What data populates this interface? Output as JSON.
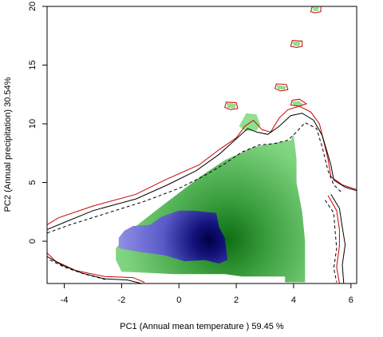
{
  "chart_data": {
    "type": "heatmap",
    "title": "",
    "xlabel": "PC1 (Annual mean temperature ) 59.45 %",
    "ylabel": "PC2 (Annual precipitation) 30.54%",
    "xlim": [
      -4.6,
      6.2
    ],
    "ylim": [
      -3.6,
      20
    ],
    "xticks": [
      -4,
      -2,
      0,
      2,
      4,
      6
    ],
    "yticks": [
      0,
      5,
      10,
      15,
      20
    ],
    "grid": false,
    "legend": "none",
    "colors": {
      "green": "#8fe08f",
      "green_dark": "#0f7a14",
      "blue": "#8c8ce6",
      "navy": "#000050",
      "red_contour": "#cc0000",
      "black_contour": "#000000"
    },
    "layers": [
      {
        "name": "green",
        "polygon": [
          [
            -2.2,
            -1.6
          ],
          [
            -2.2,
            -0.6
          ],
          [
            -1.6,
            1.1
          ],
          [
            -0.6,
            3.0
          ],
          [
            0.8,
            5.6
          ],
          [
            1.6,
            6.9
          ],
          [
            2.6,
            8.0
          ],
          [
            3.2,
            8.3
          ],
          [
            3.9,
            8.6
          ],
          [
            4.0,
            9.1
          ],
          [
            4.1,
            7.0
          ],
          [
            4.1,
            5.0
          ],
          [
            4.3,
            2.5
          ],
          [
            4.4,
            0.0
          ],
          [
            4.4,
            -3.5
          ],
          [
            3.7,
            -3.5
          ],
          [
            3.7,
            -3.0
          ],
          [
            2.2,
            -3.0
          ],
          [
            1.6,
            -2.8
          ],
          [
            -0.2,
            -2.8
          ],
          [
            -1.0,
            -2.7
          ],
          [
            -2.0,
            -2.6
          ]
        ]
      },
      {
        "name": "blue",
        "polygon": [
          [
            -2.1,
            -0.6
          ],
          [
            -1.4,
            -0.9
          ],
          [
            -0.5,
            -1.2
          ],
          [
            0.2,
            -1.7
          ],
          [
            0.9,
            -1.6
          ],
          [
            1.4,
            -1.9
          ],
          [
            1.7,
            -1.6
          ],
          [
            1.6,
            0.3
          ],
          [
            1.4,
            1.2
          ],
          [
            1.3,
            2.4
          ],
          [
            0.5,
            2.6
          ],
          [
            0.0,
            2.6
          ],
          [
            -0.6,
            2.1
          ],
          [
            -1.0,
            1.4
          ],
          [
            -1.6,
            1.3
          ],
          [
            -1.9,
            0.9
          ],
          [
            -2.1,
            0.3
          ]
        ]
      },
      {
        "name": "green-spots",
        "polygons": [
          [
            [
              1.65,
              11.8
            ],
            [
              2.0,
              11.7
            ],
            [
              1.95,
              11.3
            ],
            [
              1.7,
              11.35
            ]
          ],
          [
            [
              2.1,
              9.8
            ],
            [
              2.35,
              10.9
            ],
            [
              2.7,
              10.8
            ],
            [
              2.85,
              9.9
            ],
            [
              2.7,
              9.4
            ],
            [
              2.3,
              9.4
            ]
          ],
          [
            [
              3.4,
              13.3
            ],
            [
              3.75,
              13.2
            ],
            [
              3.7,
              12.9
            ],
            [
              3.45,
              12.95
            ]
          ],
          [
            [
              3.95,
              17.0
            ],
            [
              4.25,
              17.0
            ],
            [
              4.2,
              16.6
            ],
            [
              4.0,
              16.65
            ]
          ],
          [
            [
              4.65,
              20.0
            ],
            [
              4.9,
              20.0
            ],
            [
              4.85,
              19.6
            ],
            [
              4.7,
              19.6
            ]
          ],
          [
            [
              3.95,
              11.9
            ],
            [
              4.2,
              11.95
            ],
            [
              4.35,
              11.6
            ],
            [
              4.0,
              11.5
            ]
          ]
        ]
      }
    ],
    "contours": [
      {
        "name": "outer-red",
        "color": "red",
        "dash": false,
        "points": [
          [
            -4.6,
            1.4
          ],
          [
            -4.2,
            2.0
          ],
          [
            -3.0,
            3.0
          ],
          [
            -1.5,
            4.0
          ],
          [
            -0.5,
            5.2
          ],
          [
            0.7,
            6.5
          ],
          [
            1.4,
            7.8
          ],
          [
            2.0,
            8.8
          ],
          [
            2.3,
            9.8
          ],
          [
            2.6,
            10.3
          ],
          [
            2.9,
            9.5
          ],
          [
            3.2,
            9.3
          ],
          [
            3.5,
            10.5
          ],
          [
            3.8,
            11.2
          ],
          [
            4.2,
            11.5
          ],
          [
            4.6,
            11.0
          ],
          [
            4.9,
            10.0
          ],
          [
            5.2,
            7.0
          ],
          [
            5.3,
            5.5
          ],
          [
            5.7,
            4.8
          ],
          [
            6.2,
            4.4
          ]
        ]
      },
      {
        "name": "outer-black",
        "color": "black",
        "dash": false,
        "points": [
          [
            -4.6,
            1.0
          ],
          [
            -4.0,
            1.6
          ],
          [
            -3.0,
            2.6
          ],
          [
            -1.5,
            3.6
          ],
          [
            -0.4,
            4.8
          ],
          [
            0.6,
            6.0
          ],
          [
            1.4,
            7.4
          ],
          [
            1.9,
            8.5
          ],
          [
            2.4,
            9.6
          ],
          [
            2.7,
            9.3
          ],
          [
            3.1,
            9.1
          ],
          [
            3.5,
            9.8
          ],
          [
            3.9,
            10.7
          ],
          [
            4.3,
            10.9
          ],
          [
            4.7,
            10.3
          ],
          [
            5.0,
            9.0
          ],
          [
            5.3,
            6.5
          ],
          [
            5.4,
            5.2
          ],
          [
            5.8,
            4.6
          ],
          [
            6.2,
            4.3
          ]
        ]
      },
      {
        "name": "outer-dashed",
        "color": "black",
        "dash": true,
        "points": [
          [
            -4.6,
            0.7
          ],
          [
            -3.8,
            1.4
          ],
          [
            -2.5,
            2.4
          ],
          [
            -1.2,
            3.4
          ],
          [
            0.0,
            4.5
          ],
          [
            0.9,
            5.6
          ],
          [
            1.6,
            6.6
          ],
          [
            2.2,
            7.6
          ],
          [
            2.8,
            8.2
          ],
          [
            3.3,
            8.3
          ],
          [
            3.8,
            8.6
          ],
          [
            4.1,
            9.3
          ],
          [
            4.4,
            10.1
          ],
          [
            4.8,
            9.6
          ],
          [
            5.0,
            8.0
          ],
          [
            5.2,
            6.0
          ],
          [
            5.4,
            4.8
          ],
          [
            5.7,
            4.1
          ]
        ]
      },
      {
        "name": "right-lobe-red",
        "color": "red",
        "dash": false,
        "points": [
          [
            5.2,
            3.9
          ],
          [
            5.5,
            2.6
          ],
          [
            5.6,
            1.0
          ],
          [
            5.6,
            -0.4
          ],
          [
            5.5,
            -2.2
          ],
          [
            5.6,
            -3.6
          ]
        ]
      },
      {
        "name": "right-lobe-black",
        "color": "black",
        "dash": false,
        "points": [
          [
            5.3,
            4.0
          ],
          [
            5.6,
            2.8
          ],
          [
            5.7,
            1.2
          ],
          [
            5.8,
            -0.3
          ],
          [
            5.7,
            -2.0
          ],
          [
            5.75,
            -3.6
          ]
        ]
      },
      {
        "name": "right-lobe-dashed",
        "color": "black",
        "dash": true,
        "points": [
          [
            5.1,
            3.5
          ],
          [
            5.4,
            2.4
          ],
          [
            5.45,
            0.8
          ],
          [
            5.5,
            -0.6
          ],
          [
            5.4,
            -2.3
          ],
          [
            5.5,
            -3.5
          ]
        ]
      },
      {
        "name": "left-lower-red",
        "color": "red",
        "dash": false,
        "points": [
          [
            -4.6,
            -1.0
          ],
          [
            -4.3,
            -1.7
          ],
          [
            -3.6,
            -2.5
          ],
          [
            -2.6,
            -3.0
          ],
          [
            -1.6,
            -3.1
          ],
          [
            -1.2,
            -3.5
          ]
        ]
      },
      {
        "name": "left-lower-black",
        "color": "black",
        "dash": false,
        "points": [
          [
            -4.6,
            -1.3
          ],
          [
            -4.1,
            -2.0
          ],
          [
            -3.4,
            -2.7
          ],
          [
            -2.6,
            -3.2
          ],
          [
            -1.8,
            -3.3
          ],
          [
            -1.3,
            -3.6
          ]
        ]
      },
      {
        "name": "left-lower-dashed",
        "color": "black",
        "dash": true,
        "points": [
          [
            -4.5,
            -1.6
          ],
          [
            -4.0,
            -2.2
          ],
          [
            -3.3,
            -2.8
          ],
          [
            -2.5,
            -3.3
          ]
        ]
      }
    ],
    "islands": [
      {
        "name": "island-1",
        "points": [
          [
            1.6,
            11.4
          ],
          [
            1.65,
            11.85
          ],
          [
            2.0,
            11.8
          ],
          [
            2.05,
            11.3
          ],
          [
            1.8,
            11.2
          ]
        ]
      },
      {
        "name": "island-2",
        "points": [
          [
            3.35,
            13.0
          ],
          [
            3.4,
            13.4
          ],
          [
            3.75,
            13.35
          ],
          [
            3.8,
            12.9
          ],
          [
            3.55,
            12.8
          ]
        ]
      },
      {
        "name": "island-3",
        "points": [
          [
            3.9,
            16.6
          ],
          [
            3.95,
            17.1
          ],
          [
            4.3,
            17.05
          ],
          [
            4.3,
            16.6
          ],
          [
            4.1,
            16.5
          ]
        ]
      },
      {
        "name": "island-4",
        "points": [
          [
            4.6,
            19.55
          ],
          [
            4.65,
            20.0
          ],
          [
            4.95,
            20.0
          ],
          [
            4.95,
            19.55
          ],
          [
            4.75,
            19.45
          ]
        ]
      },
      {
        "name": "island-5",
        "points": [
          [
            3.9,
            11.6
          ],
          [
            3.95,
            12.0
          ],
          [
            4.2,
            12.1
          ],
          [
            4.45,
            11.7
          ],
          [
            4.2,
            11.5
          ]
        ]
      }
    ],
    "density_peak": [
      1.15,
      -0.1
    ]
  }
}
